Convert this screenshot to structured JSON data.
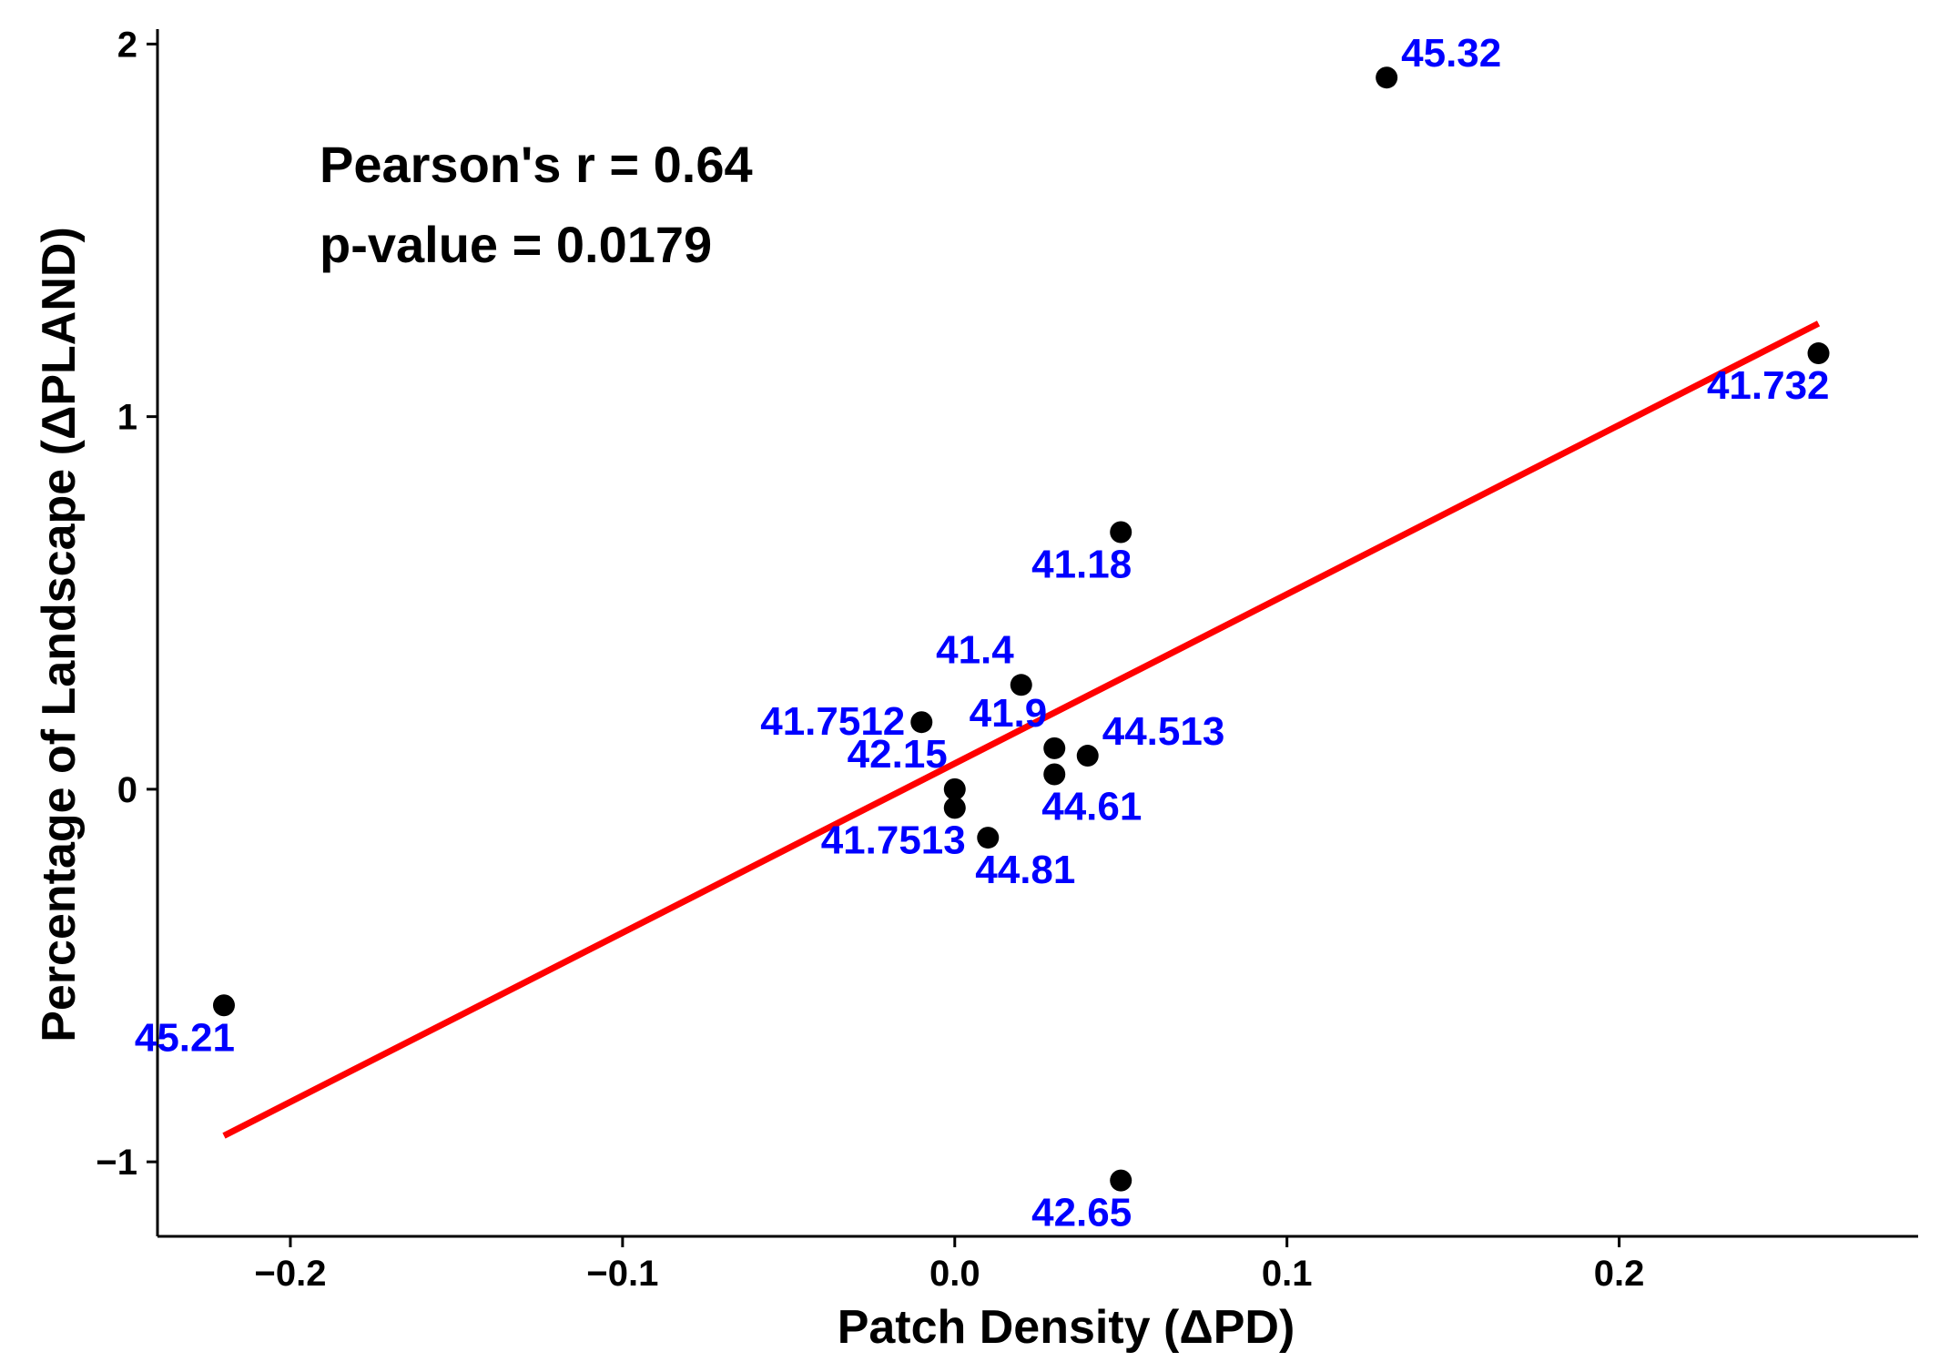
{
  "chart_data": {
    "type": "scatter",
    "title": "",
    "xlabel": "Patch Density (ΔPD)",
    "ylabel": "Percentage of Landscape (ΔPLAND)",
    "xlim": [
      -0.24,
      0.29
    ],
    "ylim": [
      -1.2,
      2.04
    ],
    "x_ticks": [
      -0.2,
      -0.1,
      0.0,
      0.1,
      0.2
    ],
    "x_tick_labels": [
      "−0.2",
      "−0.1",
      "0.0",
      "0.1",
      "0.2"
    ],
    "y_ticks": [
      -1,
      0,
      1,
      2
    ],
    "y_tick_labels": [
      "−1",
      "0",
      "1",
      "2"
    ],
    "grid": false,
    "annotations": {
      "pearson": "Pearson's r = 0.64",
      "pvalue": "p-value = 0.0179"
    },
    "point_color": "#000000",
    "label_color": "#0000ff",
    "line_color": "#ff0000",
    "points": [
      {
        "x": 0.13,
        "y": 1.91,
        "label": "45.32",
        "pos": "upper-right"
      },
      {
        "x": 0.26,
        "y": 1.17,
        "label": "41.732",
        "pos": "lower-left"
      },
      {
        "x": 0.05,
        "y": 0.69,
        "label": "41.18",
        "pos": "lower-left"
      },
      {
        "x": 0.02,
        "y": 0.28,
        "label": "41.4",
        "pos": "upper-left"
      },
      {
        "x": -0.01,
        "y": 0.18,
        "label": "41.7512",
        "pos": "left"
      },
      {
        "x": 0.03,
        "y": 0.11,
        "label": "41.9",
        "pos": "upper-left"
      },
      {
        "x": 0.04,
        "y": 0.09,
        "label": "44.513",
        "pos": "upper-right"
      },
      {
        "x": 0.03,
        "y": 0.04,
        "label": "44.61",
        "pos": "lower-right"
      },
      {
        "x": 0.0,
        "y": 0.0,
        "label": "42.15",
        "pos": "upper-left"
      },
      {
        "x": 0.0,
        "y": -0.05,
        "label": "41.7513",
        "pos": "lower-left"
      },
      {
        "x": 0.01,
        "y": -0.13,
        "label": "44.81",
        "pos": "lower-right"
      },
      {
        "x": -0.22,
        "y": -0.58,
        "label": "45.21",
        "pos": "lower-left"
      },
      {
        "x": 0.05,
        "y": -1.05,
        "label": "42.65",
        "pos": "lower-left"
      }
    ],
    "fit_line": {
      "x": [
        -0.22,
        0.26
      ],
      "y": [
        -0.93,
        1.25
      ]
    }
  }
}
